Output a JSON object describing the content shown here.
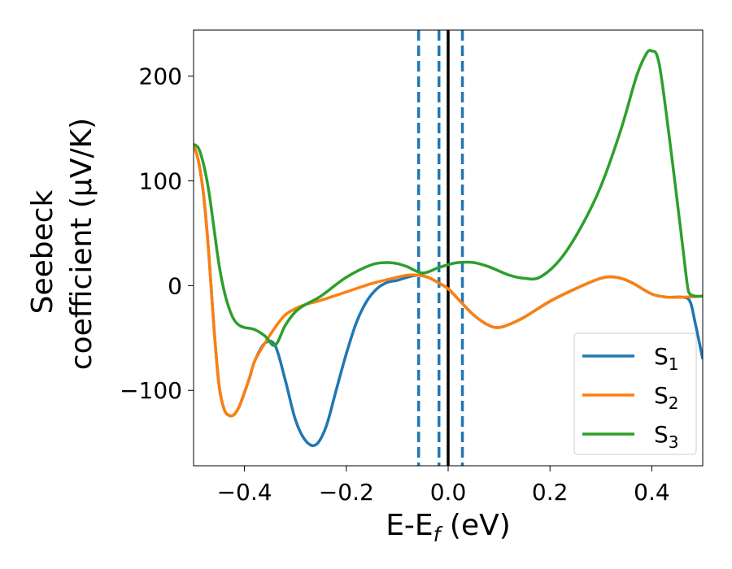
{
  "chart_data": {
    "type": "line",
    "xlabel_main": "E-E",
    "xlabel_sub": "f",
    "xlabel_unit": " (eV)",
    "ylabel_line1": "Seebeck",
    "ylabel_line2": "coefficient  (μV/K)",
    "xlim": [
      -0.5,
      0.5
    ],
    "ylim": [
      -172,
      244
    ],
    "xticks": [
      -0.4,
      -0.2,
      0.0,
      0.2,
      0.4
    ],
    "xtick_labels": [
      "−0.4",
      "−0.2",
      "0.0",
      "0.2",
      "0.4"
    ],
    "yticks": [
      -100,
      0,
      100,
      200
    ],
    "ytick_labels": [
      "−100",
      "0",
      "100",
      "200"
    ],
    "grid": false,
    "legend_position": "bottom-right",
    "vlines": [
      {
        "x": 0.0,
        "style": "solid",
        "color": "#000000"
      },
      {
        "x": -0.058,
        "style": "dashed",
        "color": "#1f77b4"
      },
      {
        "x": -0.018,
        "style": "dashed",
        "color": "#1f77b4"
      },
      {
        "x": 0.028,
        "style": "dashed",
        "color": "#1f77b4"
      }
    ],
    "series": [
      {
        "name": "S",
        "sub": "1",
        "color": "#1f77b4",
        "x": [
          -0.5,
          -0.49,
          -0.48,
          -0.47,
          -0.46,
          -0.45,
          -0.44,
          -0.43,
          -0.42,
          -0.41,
          -0.4,
          -0.39,
          -0.38,
          -0.36,
          -0.34,
          -0.32,
          -0.3,
          -0.28,
          -0.26,
          -0.24,
          -0.22,
          -0.2,
          -0.18,
          -0.16,
          -0.14,
          -0.12,
          -0.1,
          -0.08,
          -0.06,
          -0.04,
          -0.02,
          0.0,
          0.02,
          0.05,
          0.08,
          0.1,
          0.12,
          0.15,
          0.2,
          0.25,
          0.3,
          0.33,
          0.36,
          0.4,
          0.43,
          0.46,
          0.475,
          0.485,
          0.5
        ],
        "y": [
          135,
          118,
          85,
          30,
          -40,
          -95,
          -118,
          -124,
          -123,
          -115,
          -102,
          -88,
          -72,
          -55,
          -57,
          -90,
          -128,
          -148,
          -152,
          -135,
          -100,
          -65,
          -35,
          -15,
          -3,
          3,
          5,
          8,
          10,
          8,
          3,
          -3,
          -13,
          -28,
          -38,
          -40,
          -37,
          -30,
          -15,
          -3,
          7,
          8,
          3,
          -8,
          -11,
          -11,
          -15,
          -35,
          -70
        ]
      },
      {
        "name": "S",
        "sub": "2",
        "color": "#ff7f0e",
        "x": [
          -0.5,
          -0.49,
          -0.48,
          -0.47,
          -0.46,
          -0.45,
          -0.44,
          -0.43,
          -0.42,
          -0.41,
          -0.4,
          -0.39,
          -0.38,
          -0.36,
          -0.34,
          -0.32,
          -0.3,
          -0.28,
          -0.25,
          -0.2,
          -0.15,
          -0.1,
          -0.08,
          -0.06,
          -0.04,
          -0.02,
          0.0,
          0.02,
          0.05,
          0.08,
          0.1,
          0.12,
          0.15,
          0.2,
          0.25,
          0.3,
          0.33,
          0.36,
          0.4,
          0.43,
          0.46,
          0.5
        ],
        "y": [
          135,
          118,
          85,
          30,
          -40,
          -95,
          -118,
          -124,
          -123,
          -115,
          -102,
          -88,
          -72,
          -55,
          -40,
          -28,
          -22,
          -18,
          -14,
          -6,
          2,
          8,
          10,
          10,
          8,
          3,
          -3,
          -13,
          -28,
          -38,
          -40,
          -37,
          -30,
          -15,
          -3,
          7,
          8,
          3,
          -8,
          -11,
          -11,
          -10
        ]
      },
      {
        "name": "S",
        "sub": "3",
        "color": "#2ca02c",
        "x": [
          -0.5,
          -0.49,
          -0.48,
          -0.47,
          -0.46,
          -0.45,
          -0.44,
          -0.43,
          -0.42,
          -0.41,
          -0.4,
          -0.38,
          -0.36,
          -0.34,
          -0.32,
          -0.3,
          -0.28,
          -0.25,
          -0.2,
          -0.15,
          -0.12,
          -0.1,
          -0.08,
          -0.05,
          -0.02,
          0.0,
          0.02,
          0.05,
          0.08,
          0.12,
          0.15,
          0.18,
          0.22,
          0.26,
          0.3,
          0.34,
          0.37,
          0.39,
          0.4,
          0.41,
          0.42,
          0.44,
          0.46,
          0.47,
          0.475,
          0.485,
          0.5
        ],
        "y": [
          135,
          131,
          115,
          90,
          55,
          20,
          -5,
          -22,
          -33,
          -38,
          -40,
          -42,
          -48,
          -57,
          -38,
          -25,
          -18,
          -10,
          8,
          20,
          22,
          21,
          18,
          12,
          17,
          20,
          22,
          22,
          18,
          10,
          7,
          8,
          25,
          55,
          95,
          150,
          200,
          222,
          224,
          220,
          195,
          120,
          40,
          0,
          -8,
          -10,
          -10
        ]
      }
    ]
  }
}
